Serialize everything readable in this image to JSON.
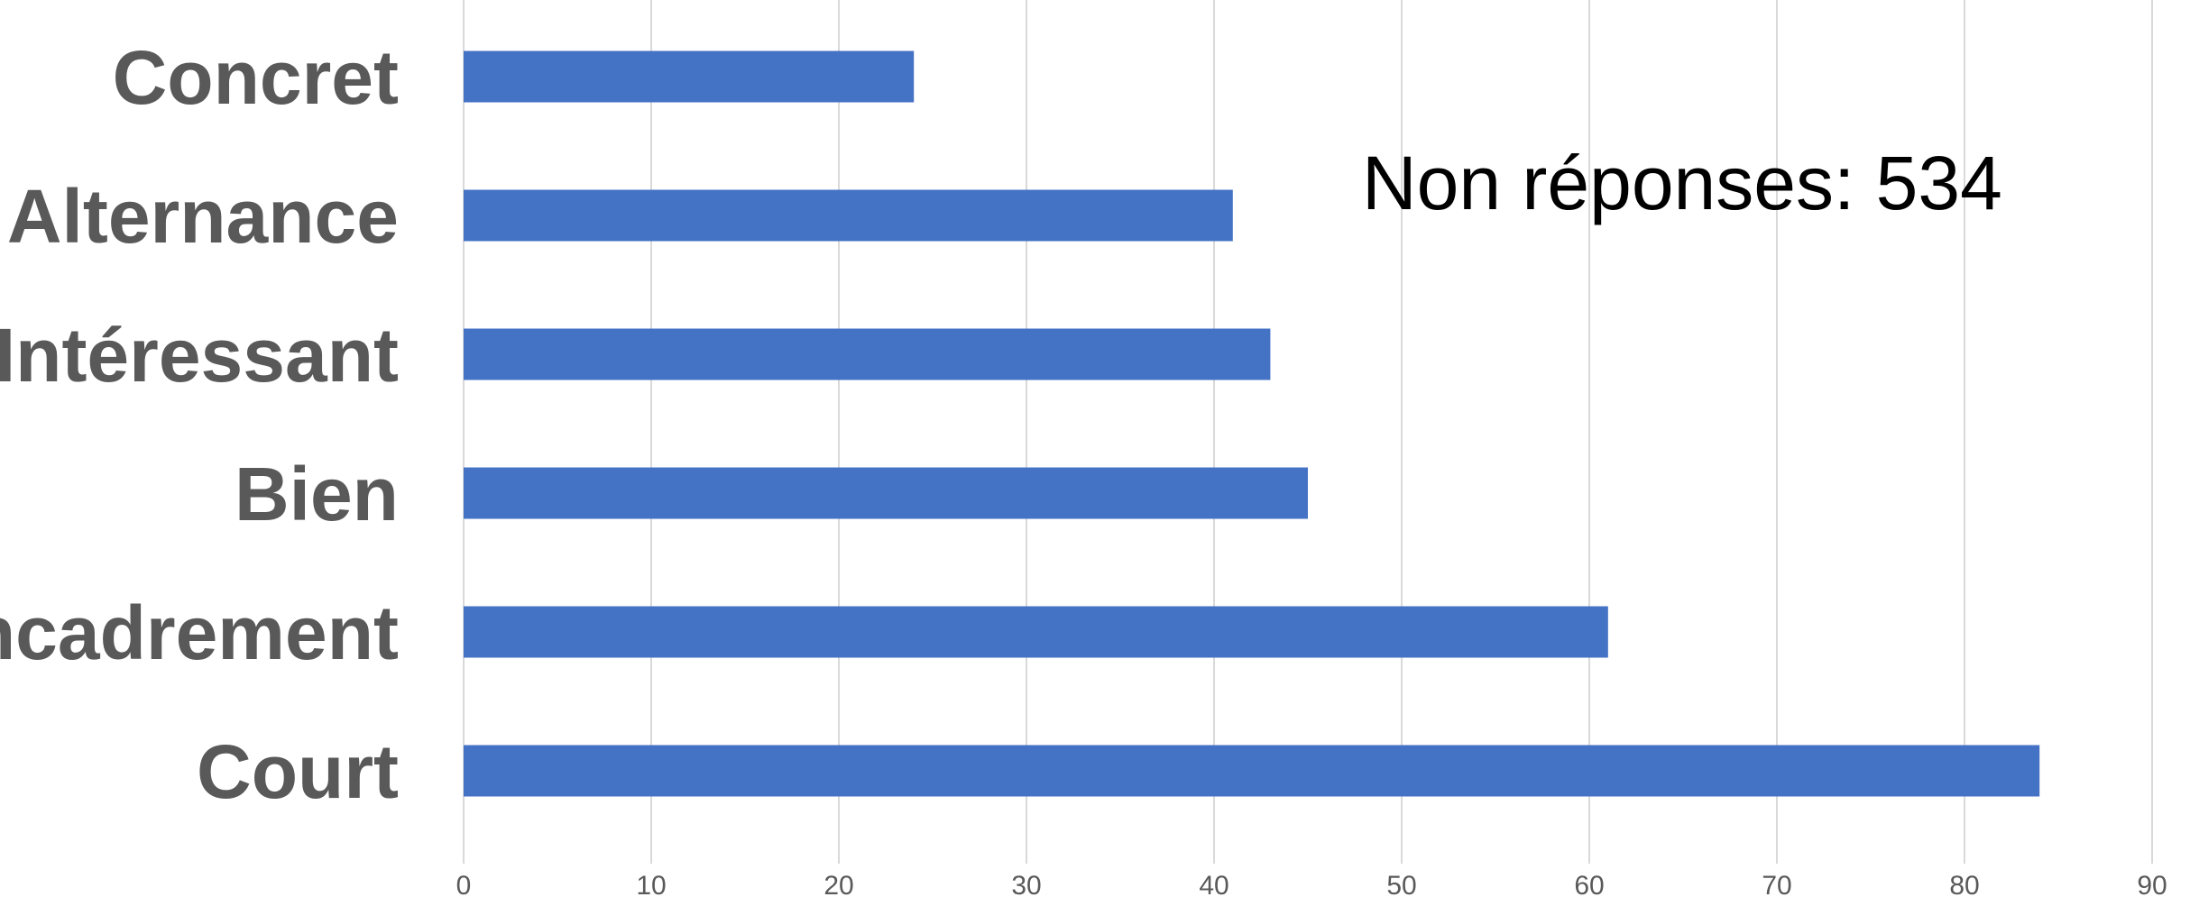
{
  "chart_data": {
    "type": "bar",
    "orientation": "horizontal",
    "categories": [
      "Concret",
      "Alternance",
      "Intéressant",
      "Bien",
      "Encadrement",
      "Court"
    ],
    "values": [
      24,
      41,
      43,
      45,
      61,
      84
    ],
    "xlim": [
      0,
      90
    ],
    "x_ticks": [
      0,
      10,
      20,
      30,
      40,
      50,
      60,
      70,
      80,
      90
    ],
    "grid": true,
    "bar_color": "#4472c4",
    "title": "",
    "xlabel": "",
    "ylabel": "",
    "annotation": "Non réponses: 534"
  }
}
